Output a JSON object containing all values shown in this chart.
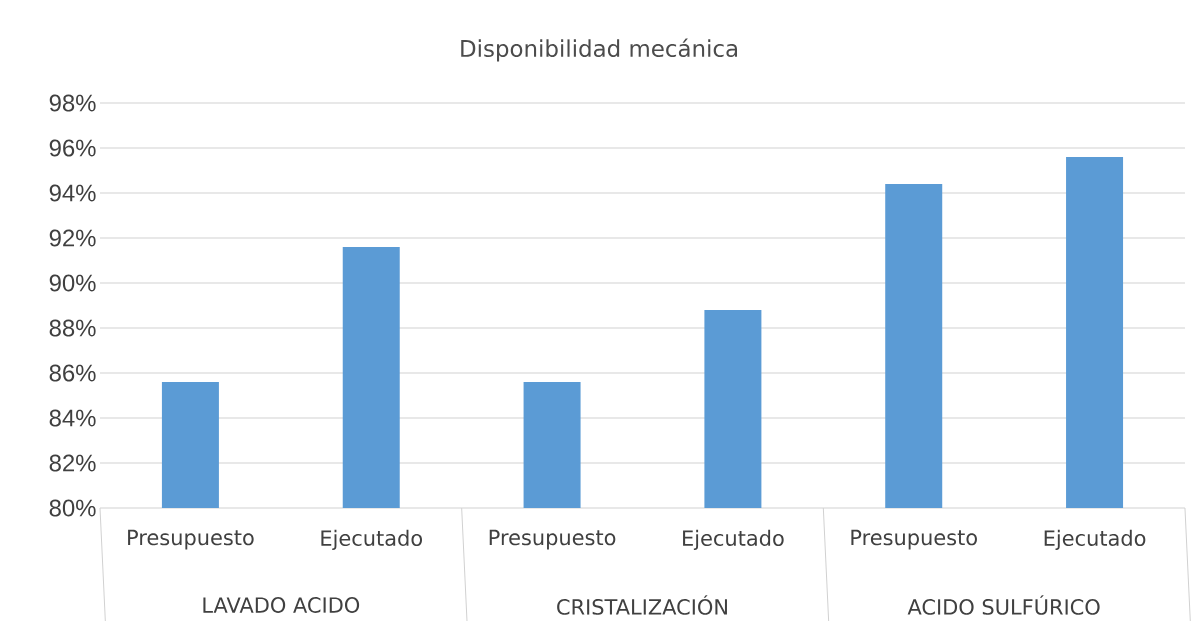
{
  "chart_data": {
    "type": "bar",
    "title": "Disponibilidad mecánica",
    "categories": [
      "Presupuesto",
      "Ejecutado",
      "Presupuesto",
      "Ejecutado",
      "Presupuesto",
      "Ejecutado"
    ],
    "values": [
      85.6,
      91.6,
      85.6,
      88.8,
      94.4,
      95.6
    ],
    "color": "#5b9bd5",
    "ylim": [
      80,
      98
    ],
    "yticks": [
      {
        "value": 80,
        "label": "80%"
      },
      {
        "value": 82,
        "label": "82%"
      },
      {
        "value": 84,
        "label": "84%"
      },
      {
        "value": 86,
        "label": "86%"
      },
      {
        "value": 88,
        "label": "88%"
      },
      {
        "value": 90,
        "label": "90%"
      },
      {
        "value": 92,
        "label": "92%"
      },
      {
        "value": 94,
        "label": "94%"
      },
      {
        "value": 96,
        "label": "96%"
      },
      {
        "value": 98,
        "label": "98%"
      }
    ],
    "grid": "y",
    "annotations": [
      "LAVADO ACIDO",
      "CRISTALIZACIÓN",
      "ACIDO SULFÚRICO"
    ]
  }
}
